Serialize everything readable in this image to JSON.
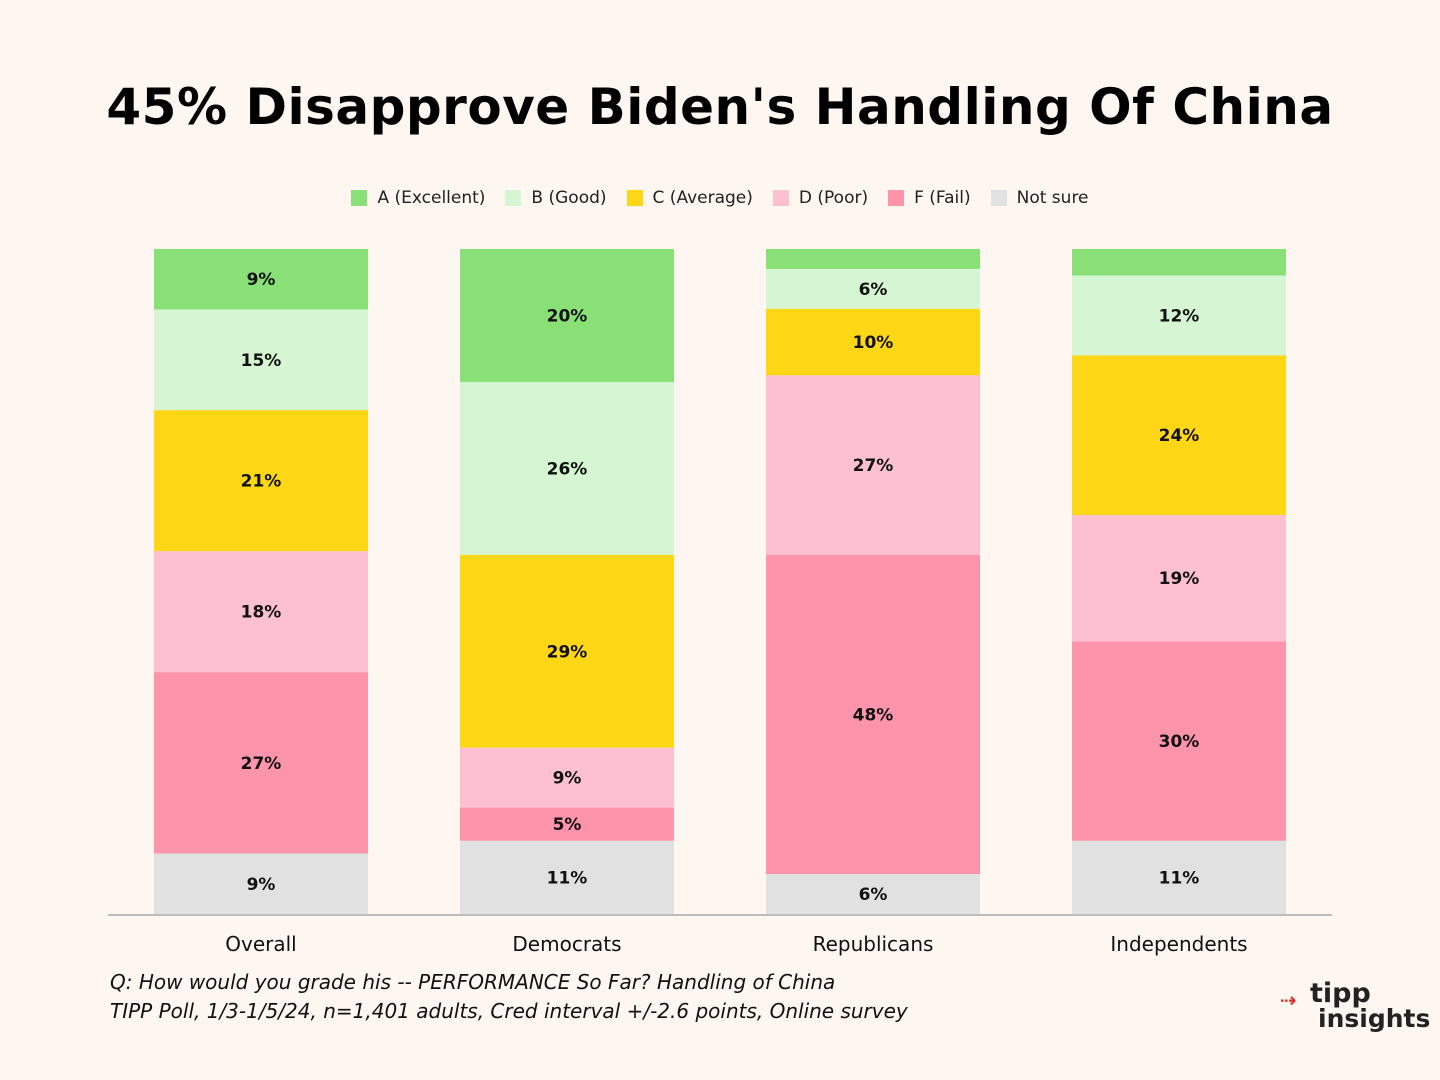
{
  "chart_data": {
    "type": "bar",
    "stacked": true,
    "title": "45% Disapprove Biden's Handling Of China",
    "categories": [
      "Overall",
      "Democrats",
      "Republicans",
      "Independents"
    ],
    "ylim": [
      0,
      100
    ],
    "grid": false,
    "legend_position": "top-center",
    "series": [
      {
        "name": "A (Excellent)",
        "color": "#88e077",
        "values": [
          9,
          20,
          3,
          4
        ],
        "labels": [
          "9%",
          "20%",
          "",
          ""
        ]
      },
      {
        "name": "B (Good)",
        "color": "#d6f5d3",
        "values": [
          15,
          26,
          6,
          12
        ],
        "labels": [
          "15%",
          "26%",
          "6%",
          "12%"
        ]
      },
      {
        "name": "C (Average)",
        "color": "#fdd615",
        "values": [
          21,
          29,
          10,
          24
        ],
        "labels": [
          "21%",
          "29%",
          "10%",
          "24%"
        ]
      },
      {
        "name": "D (Poor)",
        "color": "#fdc0d0",
        "values": [
          18,
          9,
          27,
          19
        ],
        "labels": [
          "18%",
          "9%",
          "27%",
          "19%"
        ]
      },
      {
        "name": "F (Fail)",
        "color": "#fe93ac",
        "values": [
          27,
          5,
          48,
          30
        ],
        "labels": [
          "27%",
          "5%",
          "48%",
          "30%"
        ]
      },
      {
        "name": "Not sure",
        "color": "#e1e1e1",
        "values": [
          9,
          11,
          6,
          11
        ],
        "labels": [
          "9%",
          "11%",
          "6%",
          "11%"
        ]
      }
    ]
  },
  "footnote": {
    "line1": "Q:  How would you grade his -- PERFORMANCE So Far?  Handling of China",
    "line2": "TIPP Poll, 1/3-1/5/24, n=1,401 adults, Cred interval +/-2.6 points, Online survey"
  },
  "logo": {
    "line1": "tipp",
    "line2": "insights",
    "accent_color": "#e0322b"
  },
  "colors": {
    "background": "#fdf6f1",
    "axis": "#bdbdbd"
  }
}
